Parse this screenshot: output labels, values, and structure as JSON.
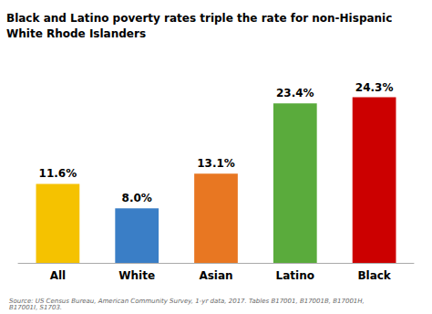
{
  "chart_data": {
    "type": "bar",
    "title": "Black and Latino poverty rates triple the rate for non-Hispanic\nWhite Rhode Islanders",
    "categories": [
      "All",
      "White",
      "Asian",
      "Latino",
      "Black"
    ],
    "values": [
      11.6,
      8.0,
      13.1,
      23.4,
      24.3
    ],
    "value_labels": [
      "11.6%",
      "8.0%",
      "13.1%",
      "23.4%",
      "24.3%"
    ],
    "colors": [
      "#F5C200",
      "#3A7EC6",
      "#E87722",
      "#5AAB3C",
      "#CC0000"
    ],
    "ylim": [
      0,
      30
    ],
    "data_labels": true,
    "tick_labels": "x",
    "grid": false,
    "annotations": [
      "Source: US Census Bureau, American Community Survey, 1-yr data, 2017. Tables B17001, B17001B, B17001H, B17001I, S1703."
    ]
  }
}
